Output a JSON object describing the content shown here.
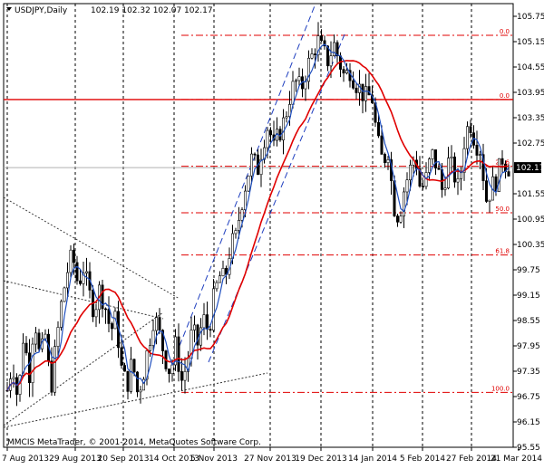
{
  "chart_data": {
    "type": "candlestick",
    "symbol_info": "USDJPY,Daily",
    "ohlc_header": "102.19 102.32 102.07 102.17",
    "footer": "MMCIS MetaTrader, © 2001-2014, MetaQuotes Software Corp.",
    "current_price": "102.17",
    "ylim": [
      95.55,
      106.05
    ],
    "y_ticks": [
      "105.75",
      "105.15",
      "104.55",
      "103.95",
      "103.35",
      "102.75",
      "102.17",
      "101.55",
      "100.95",
      "100.35",
      "99.75",
      "99.15",
      "98.55",
      "97.95",
      "97.35",
      "96.75",
      "96.15",
      "95.55"
    ],
    "x_ticks": [
      "7 Aug 2013",
      "29 Aug 2013",
      "20 Sep 2013",
      "14 Oct 2013",
      "5 Nov 2013",
      "27 Nov 2013",
      "19 Dec 2013",
      "14 Jan 2014",
      "5 Feb 2014",
      "27 Feb 2014",
      "21 Mar 2014"
    ],
    "fib_levels": [
      {
        "label": "0.0",
        "value": 105.3
      },
      {
        "label": "0.0",
        "value": 103.78
      },
      {
        "label": "23.6",
        "value": 102.2
      },
      {
        "label": "50.0",
        "value": 101.1
      },
      {
        "label": "61.8",
        "value": 100.1
      },
      {
        "label": "100.0",
        "value": 96.85
      }
    ],
    "horizontal_line": 103.78,
    "colors": {
      "bull": "#ffffff",
      "bear": "#000000",
      "ma_slow": "#e00000",
      "ma_fast": "#1f4fbf",
      "fib": "#e00000",
      "channel": "#1f3fbf"
    }
  }
}
